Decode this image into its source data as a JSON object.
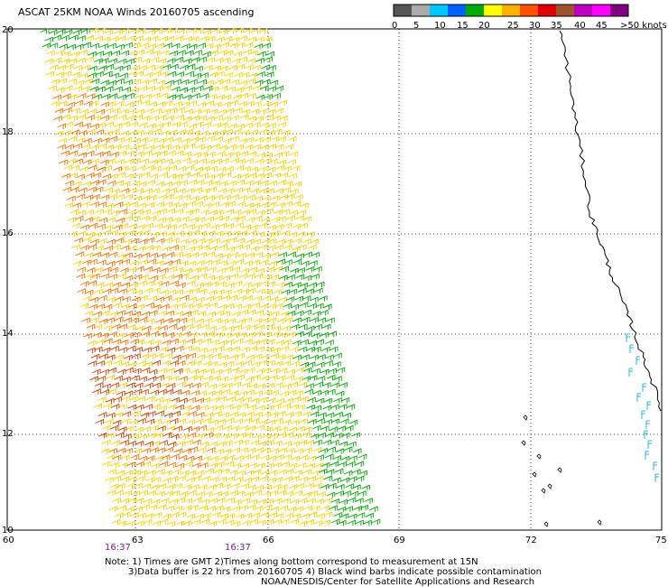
{
  "title": "ASCAT 25KM NOAA Winds 20160705 ascending",
  "legend": {
    "ticks": [
      "0",
      "5",
      "10",
      "15",
      "20",
      "25",
      "30",
      "35",
      "40",
      "45",
      ">50 knots"
    ],
    "colors": [
      "#555555",
      "#aaaaaa",
      "#00c8ff",
      "#0060ff",
      "#00aa00",
      "#ffff00",
      "#ffb000",
      "#ff5000",
      "#e00000",
      "#a0522d",
      "#c000c0",
      "#ff00ff",
      "#800080"
    ]
  },
  "map": {
    "lon_labels": [
      "60",
      "63",
      "66",
      "69",
      "72",
      "75"
    ],
    "lat_labels": [
      "20",
      "18",
      "16",
      "14",
      "12",
      "10"
    ],
    "swath_times": [
      "16:37",
      "16:37"
    ],
    "colors": {
      "gridline": "#000000",
      "coastline": "#000000",
      "time_label": "#7a1aa0",
      "barb_low": "#00aa00",
      "barb_mid": "#ffd000",
      "barb_high": "#ff7000",
      "barb_strong": "#d04000",
      "barb_other": "#28b4e0"
    }
  },
  "notes": [
    "Note: 1) Times are GMT 2)Times along bottom correspond to measurement at 15N",
    "3)Data buffer is 22 hrs from 20160705 4) Black wind barbs indicate possible contamination",
    "NOAA/NESDIS/Center for Satellite Applications and Research"
  ]
}
